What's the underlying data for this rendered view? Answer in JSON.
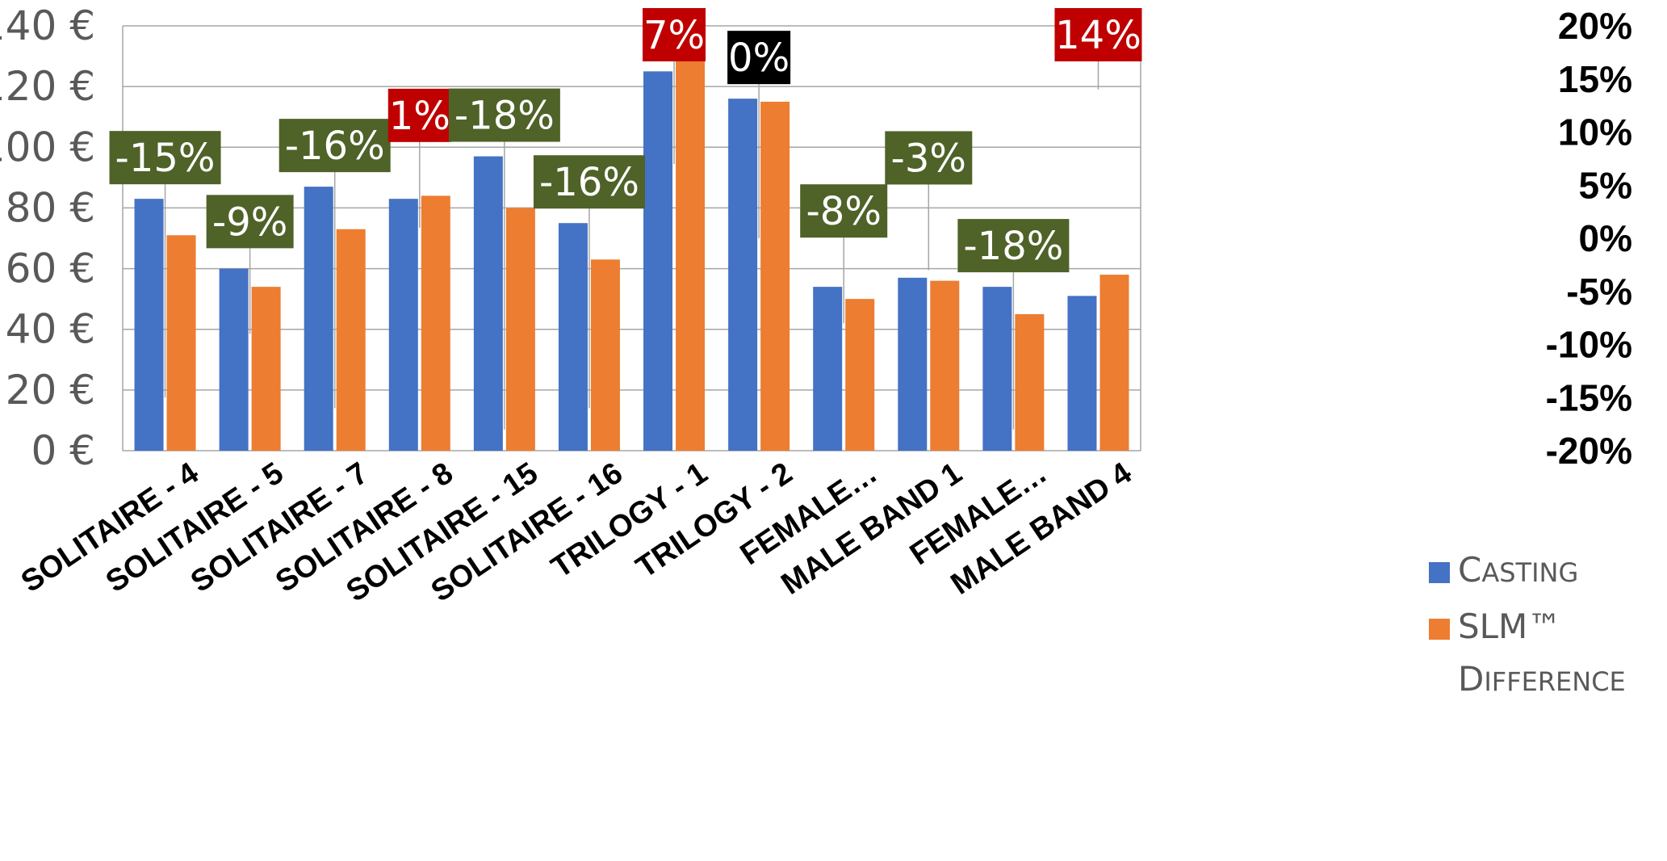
{
  "chart_data": {
    "type": "bar",
    "categories": [
      "SOLITAIRE - 4",
      "SOLITAIRE - 5",
      "SOLITAIRE - 7",
      "SOLITAIRE - 8",
      "SOLITAIRE - 15",
      "SOLITAIRE - 16",
      "TRILOGY - 1",
      "TRILOGY - 2",
      "FEMALE…",
      "MALE BAND 1",
      "FEMALE…",
      "MALE BAND 4"
    ],
    "series": [
      {
        "name": "Casting",
        "color": "#4472C4",
        "values": [
          83,
          60,
          87,
          83,
          97,
          75,
          125,
          116,
          54,
          57,
          54,
          51
        ]
      },
      {
        "name": "SLM™",
        "color": "#ED7D31",
        "values": [
          71,
          54,
          73,
          84,
          80,
          63,
          133,
          115,
          50,
          56,
          45,
          58
        ]
      },
      {
        "name": "Difference",
        "values": [
          -15,
          -9,
          -16,
          1,
          -18,
          -16,
          7,
          0,
          -8,
          -3,
          -18,
          14
        ]
      }
    ],
    "difference_labels": [
      "-15%",
      "-9%",
      "-16%",
      "1%",
      "-18%",
      "-16%",
      "7%",
      "0%",
      "-8%",
      "-3%",
      "-18%",
      "14%"
    ],
    "difference_label_colors": [
      "#4F6228",
      "#4F6228",
      "#4F6228",
      "#C00000",
      "#4F6228",
      "#4F6228",
      "#C00000",
      "#000000",
      "#4F6228",
      "#4F6228",
      "#4F6228",
      "#C00000"
    ],
    "y_left": {
      "ticks": [
        "0 €",
        "20 €",
        "40 €",
        "60 €",
        "80 €",
        "100 €",
        "120 €",
        "140 €"
      ],
      "min": 0,
      "max": 140,
      "step": 20
    },
    "y_right": {
      "ticks": [
        "-20%",
        "-15%",
        "-10%",
        "-5%",
        "0%",
        "5%",
        "10%",
        "15%",
        "20%"
      ],
      "min": -20,
      "max": 20,
      "step": 5
    },
    "legend": [
      {
        "first": "C",
        "rest": "ASTING",
        "color": "#4472C4"
      },
      {
        "first": "SLM™",
        "rest": "",
        "color": "#ED7D31"
      },
      {
        "first": "D",
        "rest": "IFFERENCE",
        "color": null
      }
    ],
    "gridlines": true,
    "legend_position": "bottom-right"
  }
}
